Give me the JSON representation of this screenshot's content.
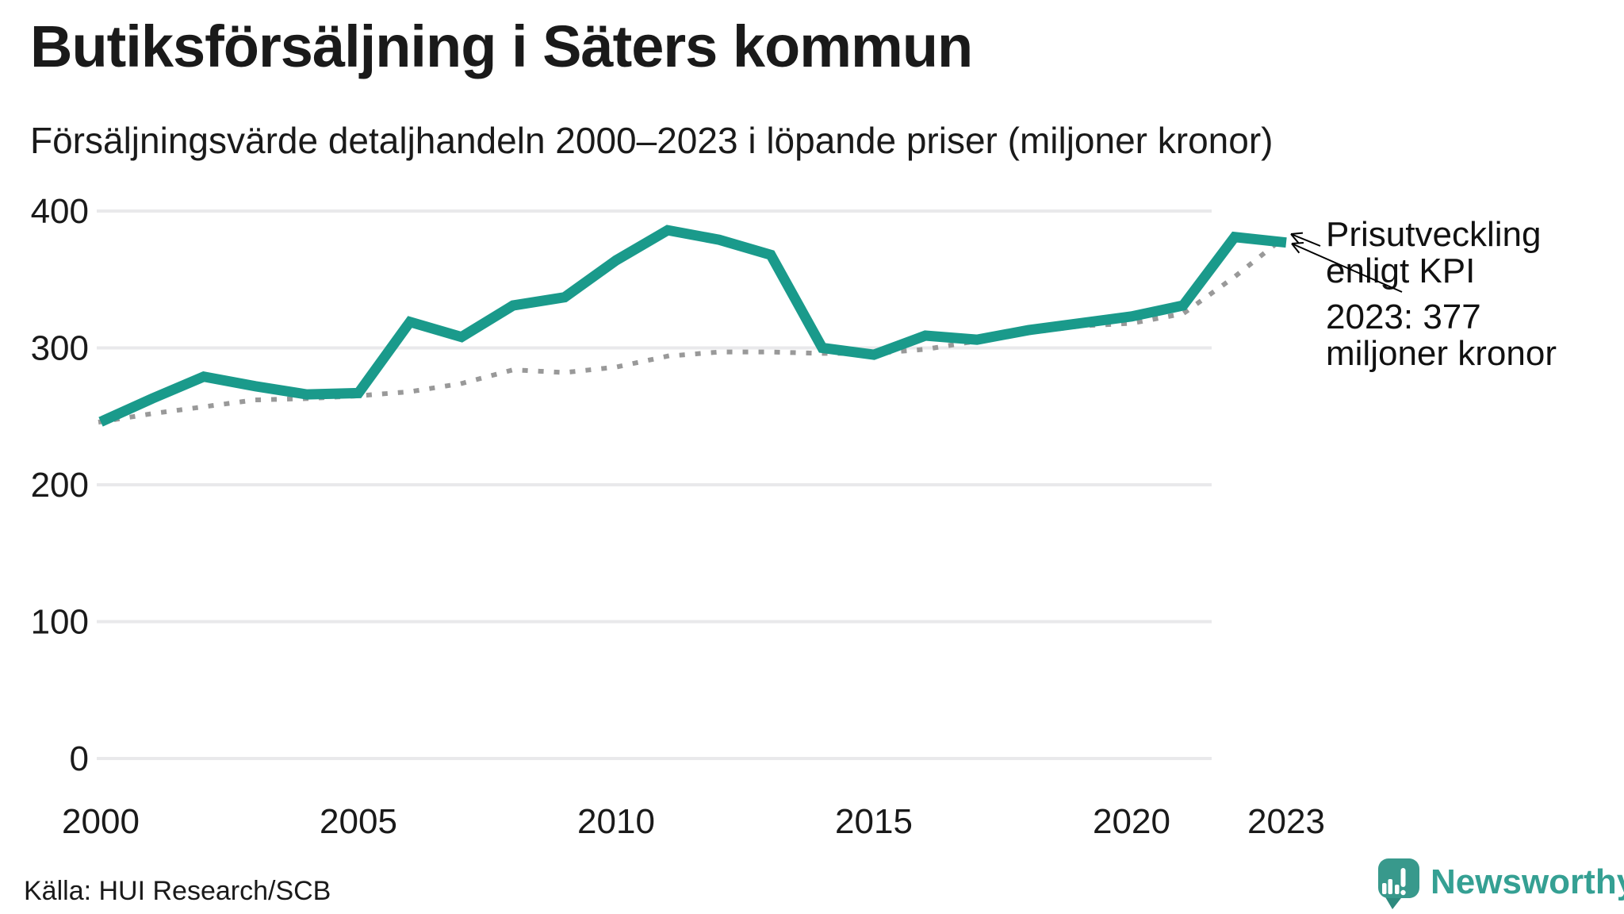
{
  "chart": {
    "title": "Butiksförsäljning i Säters kommun",
    "subtitle": "Försäljningsvärde detaljhandeln 2000–2023 i löpande priser (miljoner kronor)"
  },
  "annotation": {
    "line1": "Prisutveckling",
    "line2": "enligt KPI",
    "line3": "2023: 377",
    "line4": "miljoner kronor"
  },
  "footer": {
    "source": "Källa: HUI Research/SCB",
    "logo_text": "Newsworthy"
  },
  "colors": {
    "sales_line": "#1a9a8b",
    "kpi_line": "#999999",
    "gridline": "#e9e9eb",
    "text": "#1a1a1a",
    "annotation_text": "#111111",
    "arrow": "#000000",
    "logo_teal": "#38998c",
    "logo_text_teal": "#35a093"
  },
  "chart_data": {
    "type": "line",
    "title": "Butiksförsäljning i Säters kommun",
    "subtitle": "Försäljningsvärde detaljhandeln 2000–2023 i löpande priser (miljoner kronor)",
    "x": [
      2000,
      2001,
      2002,
      2003,
      2004,
      2005,
      2006,
      2007,
      2008,
      2009,
      2010,
      2011,
      2012,
      2013,
      2014,
      2015,
      2016,
      2017,
      2018,
      2019,
      2020,
      2021,
      2022,
      2023
    ],
    "series": [
      {
        "name": "Försäljningsvärde detaljhandeln i löpande priser",
        "style": "solid",
        "color": "#1a9a8b",
        "values": [
          246,
          263,
          279,
          272,
          266,
          267,
          319,
          308,
          331,
          337,
          364,
          386,
          379,
          368,
          300,
          295,
          309,
          306,
          313,
          318,
          323,
          331,
          381,
          377
        ]
      },
      {
        "name": "Prisutveckling enligt KPI",
        "style": "dotted",
        "color": "#999999",
        "values": [
          246,
          252,
          257,
          262,
          263,
          265,
          268,
          274,
          284,
          282,
          286,
          294,
          297,
          297,
          296,
          296,
          299,
          305,
          311,
          316,
          318,
          325,
          352,
          382
        ]
      }
    ],
    "ylim": [
      0,
      400
    ],
    "yticks": [
      0,
      100,
      200,
      300,
      400
    ],
    "xticks": [
      2000,
      2005,
      2010,
      2015,
      2020,
      2023
    ],
    "grid": "horizontal",
    "legend_position": "none (direct annotation with arrows)",
    "annotation_value": "2023: 377 miljoner kronor",
    "annotation_series_label": "Prisutveckling enligt KPI"
  }
}
